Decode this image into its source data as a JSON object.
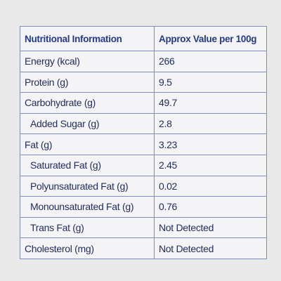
{
  "table": {
    "header": [
      "Nutritional Information",
      "Approx Value per 100g"
    ],
    "rows": [
      [
        "Energy (kcal)",
        "266"
      ],
      [
        "Protein (g)",
        "9.5"
      ],
      [
        "Carbohydrate (g)",
        "49.7"
      ],
      [
        "Added Sugar (g)",
        "2.8"
      ],
      [
        "Fat (g)",
        "3.23"
      ],
      [
        "Saturated Fat (g)",
        "2.45"
      ],
      [
        "Polyunsaturated Fat (g)",
        "0.02"
      ],
      [
        "Monounsaturated Fat (g)",
        "0.76"
      ],
      [
        "Trans Fat (g)",
        "Not Detected"
      ],
      [
        "Cholesterol (mg)",
        "Not Detected"
      ]
    ]
  }
}
